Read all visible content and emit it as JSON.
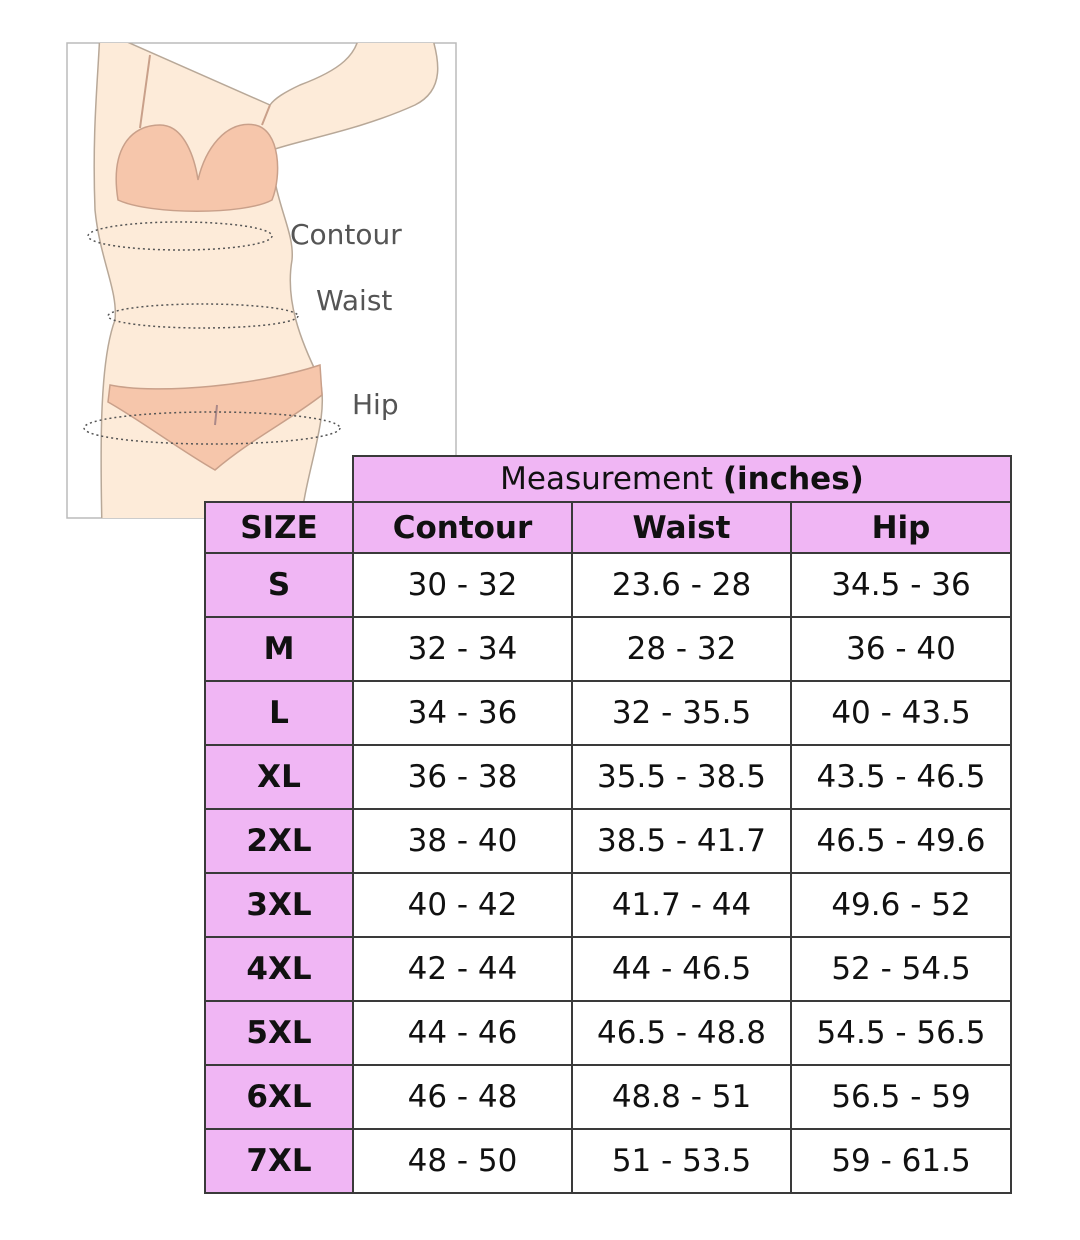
{
  "illustration": {
    "labels": [
      "Contour",
      "Waist",
      "Hip"
    ]
  },
  "table": {
    "title": "Measurement",
    "title_unit": "(inches)",
    "columns": [
      "SIZE",
      "Contour",
      "Waist",
      "Hip"
    ],
    "rows": [
      [
        "S",
        "30 - 32",
        "23.6 - 28",
        "34.5 - 36"
      ],
      [
        "M",
        "32 - 34",
        "28 - 32",
        "36 - 40"
      ],
      [
        "L",
        "34 - 36",
        "32 - 35.5",
        "40 - 43.5"
      ],
      [
        "XL",
        "36 - 38",
        "35.5 - 38.5",
        "43.5 - 46.5"
      ],
      [
        "2XL",
        "38 - 40",
        "38.5 - 41.7",
        "46.5 - 49.6"
      ],
      [
        "3XL",
        "40 - 42",
        "41.7 - 44",
        "49.6 - 52"
      ],
      [
        "4XL",
        "42 - 44",
        "44 - 46.5",
        "52 - 54.5"
      ],
      [
        "5XL",
        "44 - 46",
        "46.5 - 48.8",
        "54.5 - 56.5"
      ],
      [
        "6XL",
        "46 - 48",
        "48.8 - 51",
        "56.5 - 59"
      ],
      [
        "7XL",
        "48 - 50",
        "51 - 53.5",
        "59 - 61.5"
      ]
    ]
  }
}
